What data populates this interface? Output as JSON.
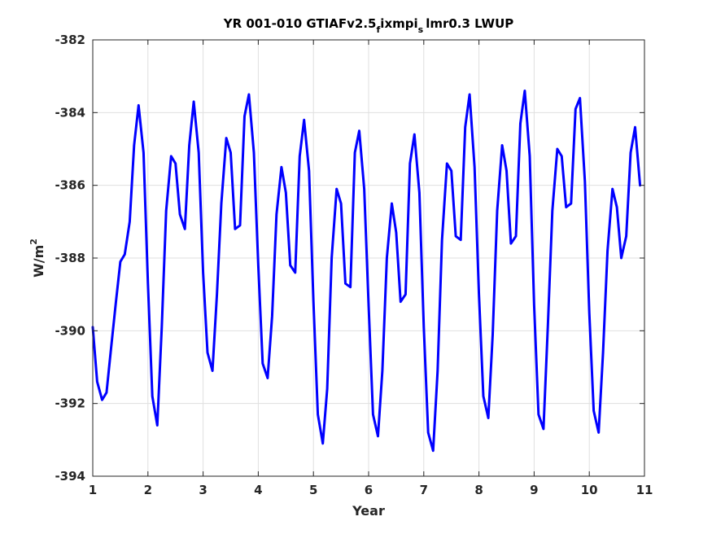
{
  "chart_data": {
    "type": "line",
    "title": {
      "prefix": "YR 001-010 GTIAFv2.5",
      "sub1": "f",
      "mid": "ixmpi",
      "sub2": "s",
      "suffix": "lmr0.3 LWUP"
    },
    "xlabel": "Year",
    "ylabel": {
      "base": "W/m",
      "sup": "2"
    },
    "xlim": [
      1,
      11
    ],
    "ylim": [
      -394,
      -382
    ],
    "xticks": [
      1,
      2,
      3,
      4,
      5,
      6,
      7,
      8,
      9,
      10,
      11
    ],
    "yticks": [
      -394,
      -392,
      -390,
      -388,
      -386,
      -384,
      -382
    ],
    "grid": true,
    "series": [
      {
        "color": "#0000ff",
        "x": [
          1.0,
          1.08,
          1.17,
          1.25,
          1.33,
          1.42,
          1.5,
          1.58,
          1.67,
          1.75,
          1.83,
          1.92,
          2.0,
          2.08,
          2.17,
          2.25,
          2.33,
          2.42,
          2.5,
          2.58,
          2.67,
          2.75,
          2.83,
          2.92,
          3.0,
          3.08,
          3.17,
          3.25,
          3.33,
          3.42,
          3.5,
          3.58,
          3.67,
          3.75,
          3.83,
          3.92,
          4.0,
          4.08,
          4.17,
          4.25,
          4.33,
          4.42,
          4.5,
          4.58,
          4.67,
          4.75,
          4.83,
          4.92,
          5.0,
          5.08,
          5.17,
          5.25,
          5.33,
          5.42,
          5.5,
          5.58,
          5.67,
          5.75,
          5.83,
          5.92,
          6.0,
          6.08,
          6.17,
          6.25,
          6.33,
          6.42,
          6.5,
          6.58,
          6.67,
          6.75,
          6.83,
          6.92,
          7.0,
          7.08,
          7.17,
          7.25,
          7.33,
          7.42,
          7.5,
          7.58,
          7.67,
          7.75,
          7.83,
          7.92,
          8.0,
          8.08,
          8.17,
          8.25,
          8.33,
          8.42,
          8.5,
          8.58,
          8.67,
          8.75,
          8.83,
          8.92,
          9.0,
          9.08,
          9.17,
          9.25,
          9.33,
          9.42,
          9.5,
          9.58,
          9.67,
          9.75,
          9.83,
          9.92,
          10.0,
          10.08,
          10.17,
          10.25,
          10.33,
          10.42,
          10.5,
          10.58,
          10.67,
          10.75,
          10.83,
          10.92
        ],
        "y": [
          -389.9,
          -391.4,
          -391.9,
          -391.7,
          -390.5,
          -389.2,
          -388.1,
          -387.9,
          -387.0,
          -384.9,
          -383.8,
          -385.1,
          -388.7,
          -391.8,
          -392.6,
          -389.9,
          -386.7,
          -385.2,
          -385.4,
          -386.8,
          -387.2,
          -384.9,
          -383.7,
          -385.1,
          -388.4,
          -390.6,
          -391.1,
          -389.0,
          -386.5,
          -384.7,
          -385.1,
          -387.2,
          -387.1,
          -384.1,
          -383.5,
          -385.1,
          -388.2,
          -390.9,
          -391.3,
          -389.6,
          -386.8,
          -385.5,
          -386.2,
          -388.2,
          -388.4,
          -385.2,
          -384.2,
          -385.6,
          -389.2,
          -392.3,
          -393.1,
          -391.6,
          -388.0,
          -386.1,
          -386.5,
          -388.7,
          -388.8,
          -385.1,
          -384.5,
          -386.1,
          -389.3,
          -392.3,
          -392.9,
          -391.1,
          -388.0,
          -386.5,
          -387.3,
          -389.2,
          -389.0,
          -385.4,
          -384.6,
          -386.2,
          -389.9,
          -392.8,
          -393.3,
          -391.1,
          -387.5,
          -385.4,
          -385.6,
          -387.4,
          -387.5,
          -384.4,
          -383.5,
          -385.5,
          -389.0,
          -391.8,
          -392.4,
          -390.1,
          -386.7,
          -384.9,
          -385.6,
          -387.6,
          -387.4,
          -384.3,
          -383.4,
          -385.2,
          -389.3,
          -392.3,
          -392.7,
          -389.8,
          -386.7,
          -385.0,
          -385.2,
          -386.6,
          -386.5,
          -383.9,
          -383.6,
          -385.9,
          -389.5,
          -392.2,
          -392.8,
          -390.6,
          -387.8,
          -386.1,
          -386.6,
          -388.0,
          -387.4,
          -385.1,
          -384.4,
          -386.0
        ]
      }
    ]
  }
}
